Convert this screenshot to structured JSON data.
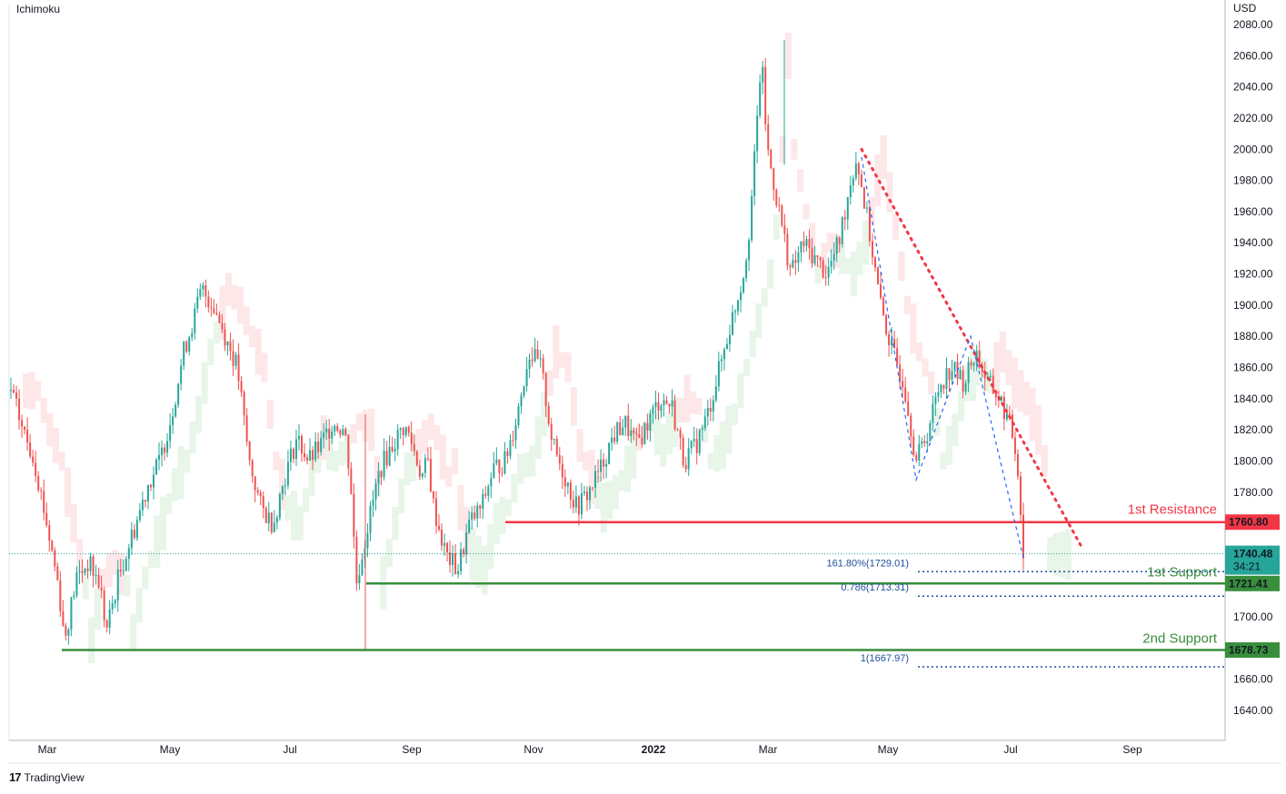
{
  "indicator_label": "Ichimoku",
  "brand": {
    "logo": "17",
    "name": "TradingView"
  },
  "chart_data": {
    "type": "candlestick",
    "currency": "USD",
    "ylim": [
      1620,
      2085
    ],
    "yticks": [
      1640,
      1660,
      1680,
      1700,
      1720,
      1740,
      1760,
      1780,
      1800,
      1820,
      1840,
      1860,
      1880,
      1900,
      1920,
      1940,
      1960,
      1980,
      2000,
      2020,
      2040,
      2060,
      2080
    ],
    "xticks": [
      "Mar",
      "May",
      "Jul",
      "Sep",
      "Nov",
      "2022",
      "Mar",
      "May",
      "Jul",
      "Sep"
    ],
    "price_path": [
      [
        0,
        1845
      ],
      [
        2,
        1820
      ],
      [
        4,
        1800
      ],
      [
        6,
        1760
      ],
      [
        8,
        1720
      ],
      [
        9,
        1685
      ],
      [
        11,
        1725
      ],
      [
        13,
        1735
      ],
      [
        15,
        1720
      ],
      [
        16,
        1690
      ],
      [
        18,
        1725
      ],
      [
        21,
        1760
      ],
      [
        23,
        1785
      ],
      [
        25,
        1800
      ],
      [
        27,
        1830
      ],
      [
        29,
        1870
      ],
      [
        31,
        1895
      ],
      [
        32,
        1910
      ],
      [
        34,
        1900
      ],
      [
        36,
        1880
      ],
      [
        38,
        1860
      ],
      [
        40,
        1800
      ],
      [
        42,
        1770
      ],
      [
        44,
        1760
      ],
      [
        46,
        1790
      ],
      [
        48,
        1815
      ],
      [
        50,
        1800
      ],
      [
        52,
        1810
      ],
      [
        54,
        1825
      ],
      [
        56,
        1820
      ],
      [
        57,
        1790
      ],
      [
        58,
        1722
      ],
      [
        60,
        1760
      ],
      [
        62,
        1795
      ],
      [
        64,
        1810
      ],
      [
        66,
        1822
      ],
      [
        67,
        1815
      ],
      [
        69,
        1790
      ],
      [
        70,
        1800
      ],
      [
        71,
        1770
      ],
      [
        73,
        1740
      ],
      [
        75,
        1730
      ],
      [
        77,
        1760
      ],
      [
        79,
        1770
      ],
      [
        81,
        1795
      ],
      [
        83,
        1800
      ],
      [
        85,
        1830
      ],
      [
        87,
        1870
      ],
      [
        89,
        1860
      ],
      [
        91,
        1810
      ],
      [
        93,
        1790
      ],
      [
        95,
        1770
      ],
      [
        97,
        1780
      ],
      [
        99,
        1795
      ],
      [
        101,
        1815
      ],
      [
        103,
        1825
      ],
      [
        105,
        1810
      ],
      [
        107,
        1825
      ],
      [
        109,
        1840
      ],
      [
        111,
        1835
      ],
      [
        113,
        1800
      ],
      [
        115,
        1810
      ],
      [
        117,
        1830
      ],
      [
        119,
        1860
      ],
      [
        121,
        1890
      ],
      [
        123,
        1920
      ],
      [
        124,
        1950
      ],
      [
        125,
        2000
      ],
      [
        126,
        2060
      ],
      [
        127,
        2000
      ],
      [
        129,
        1960
      ],
      [
        131,
        1920
      ],
      [
        133,
        1940
      ],
      [
        135,
        1930
      ],
      [
        137,
        1920
      ],
      [
        139,
        1940
      ],
      [
        141,
        1980
      ],
      [
        142,
        1995
      ],
      [
        144,
        1950
      ],
      [
        146,
        1900
      ],
      [
        148,
        1870
      ],
      [
        150,
        1850
      ],
      [
        152,
        1800
      ],
      [
        154,
        1820
      ],
      [
        156,
        1850
      ],
      [
        158,
        1860
      ],
      [
        160,
        1850
      ],
      [
        162,
        1870
      ],
      [
        164,
        1850
      ],
      [
        166,
        1840
      ],
      [
        168,
        1820
      ],
      [
        169,
        1800
      ],
      [
        170,
        1740
      ]
    ],
    "annotations": {
      "resistance": {
        "label": "1st Resistance",
        "value": 1760.8,
        "price_label": "1760.80",
        "color": "#f23645"
      },
      "support1": {
        "label": "1st Support",
        "value": 1721.41,
        "price_label": "1721.41",
        "color": "#388e3c"
      },
      "support2": {
        "label": "2nd Support",
        "value": 1678.73,
        "price_label": "1678.73",
        "color": "#388e3c"
      },
      "current": {
        "value": 1740.48,
        "price_label": "1740.48",
        "countdown": "34:21",
        "color": "#26a69a"
      },
      "fib": [
        {
          "label": "161.80%(1729.01)",
          "value": 1729.01
        },
        {
          "label": "0.786(1713.31)",
          "value": 1713.31
        },
        {
          "label": "1(1667.97)",
          "value": 1667.97
        }
      ]
    },
    "colors": {
      "up": "#26a69a",
      "down": "#ef5350",
      "cloud_up": "#e8f5e9",
      "cloud_down": "#fde7e9",
      "fib": "#1e4f9c"
    }
  }
}
